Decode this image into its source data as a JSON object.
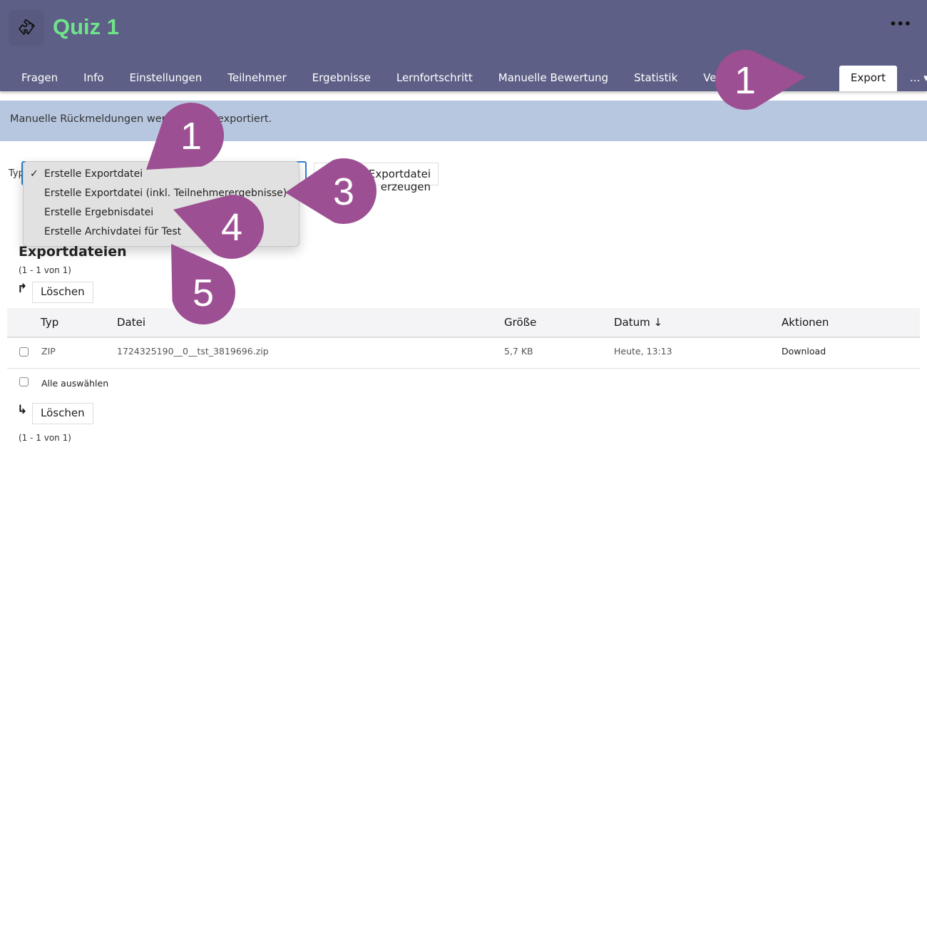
{
  "header": {
    "title": "Quiz 1",
    "logo_icon": "puzzle-icon",
    "more_label": "•••"
  },
  "tabs": [
    {
      "label": "Fragen"
    },
    {
      "label": "Info"
    },
    {
      "label": "Einstellungen"
    },
    {
      "label": "Teilnehmer"
    },
    {
      "label": "Ergebnisse"
    },
    {
      "label": "Lernfortschritt"
    },
    {
      "label": "Manuelle Bewertung"
    },
    {
      "label": "Statistik"
    },
    {
      "label": "Verlauf"
    },
    {
      "label": "Export",
      "active": true
    },
    {
      "label": "... ▾"
    }
  ],
  "info": "Manuelle Rückmeldungen werden nicht exportiert.",
  "form": {
    "type_label": "Typ",
    "create_button": "Exportdatei erzeugen",
    "options": [
      {
        "label": "Erstelle Exportdatei",
        "selected": true
      },
      {
        "label": "Erstelle Exportdatei (inkl. Teilnehmerergebnisse)"
      },
      {
        "label": "Erstelle Ergebnisdatei"
      },
      {
        "label": "Erstelle Archivdatei für Test"
      }
    ],
    "check_mark": "✓"
  },
  "files": {
    "heading": "Exportdateien",
    "count": "(1 - 1 von 1)",
    "delete_label": "Löschen",
    "select_all": "Alle auswählen",
    "columns": [
      "Typ",
      "Datei",
      "Größe",
      "Datum ↓",
      "Aktionen"
    ],
    "rows": [
      {
        "type": "ZIP",
        "file": "1724325190__0__tst_3819696.zip",
        "size": "5,7 KB",
        "date": "Heute, 13:13",
        "action": "Download"
      }
    ]
  },
  "annotations": {
    "color": "#9c4f92",
    "labels": [
      "1",
      "1",
      "3",
      "4",
      "5"
    ]
  }
}
